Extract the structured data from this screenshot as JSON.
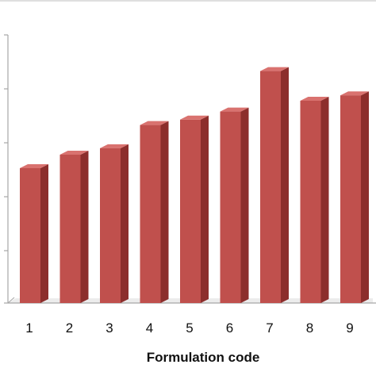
{
  "chart_data": {
    "type": "bar",
    "title": "",
    "xlabel": "Formulation code",
    "ylabel": "",
    "categories": [
      "1",
      "2",
      "3",
      "4",
      "5",
      "6",
      "7",
      "8",
      "9"
    ],
    "values": [
      2.5,
      2.75,
      2.87,
      3.3,
      3.4,
      3.55,
      4.3,
      3.75,
      3.85
    ],
    "ylim": [
      0,
      5.5
    ],
    "grid": false,
    "legend": "none",
    "colors": {
      "bar_front": "#c0504d",
      "bar_side": "#8c2e2c",
      "bar_top": "#d9726f",
      "axis": "#a6a6a6",
      "frame": "#bfbfbf"
    }
  }
}
